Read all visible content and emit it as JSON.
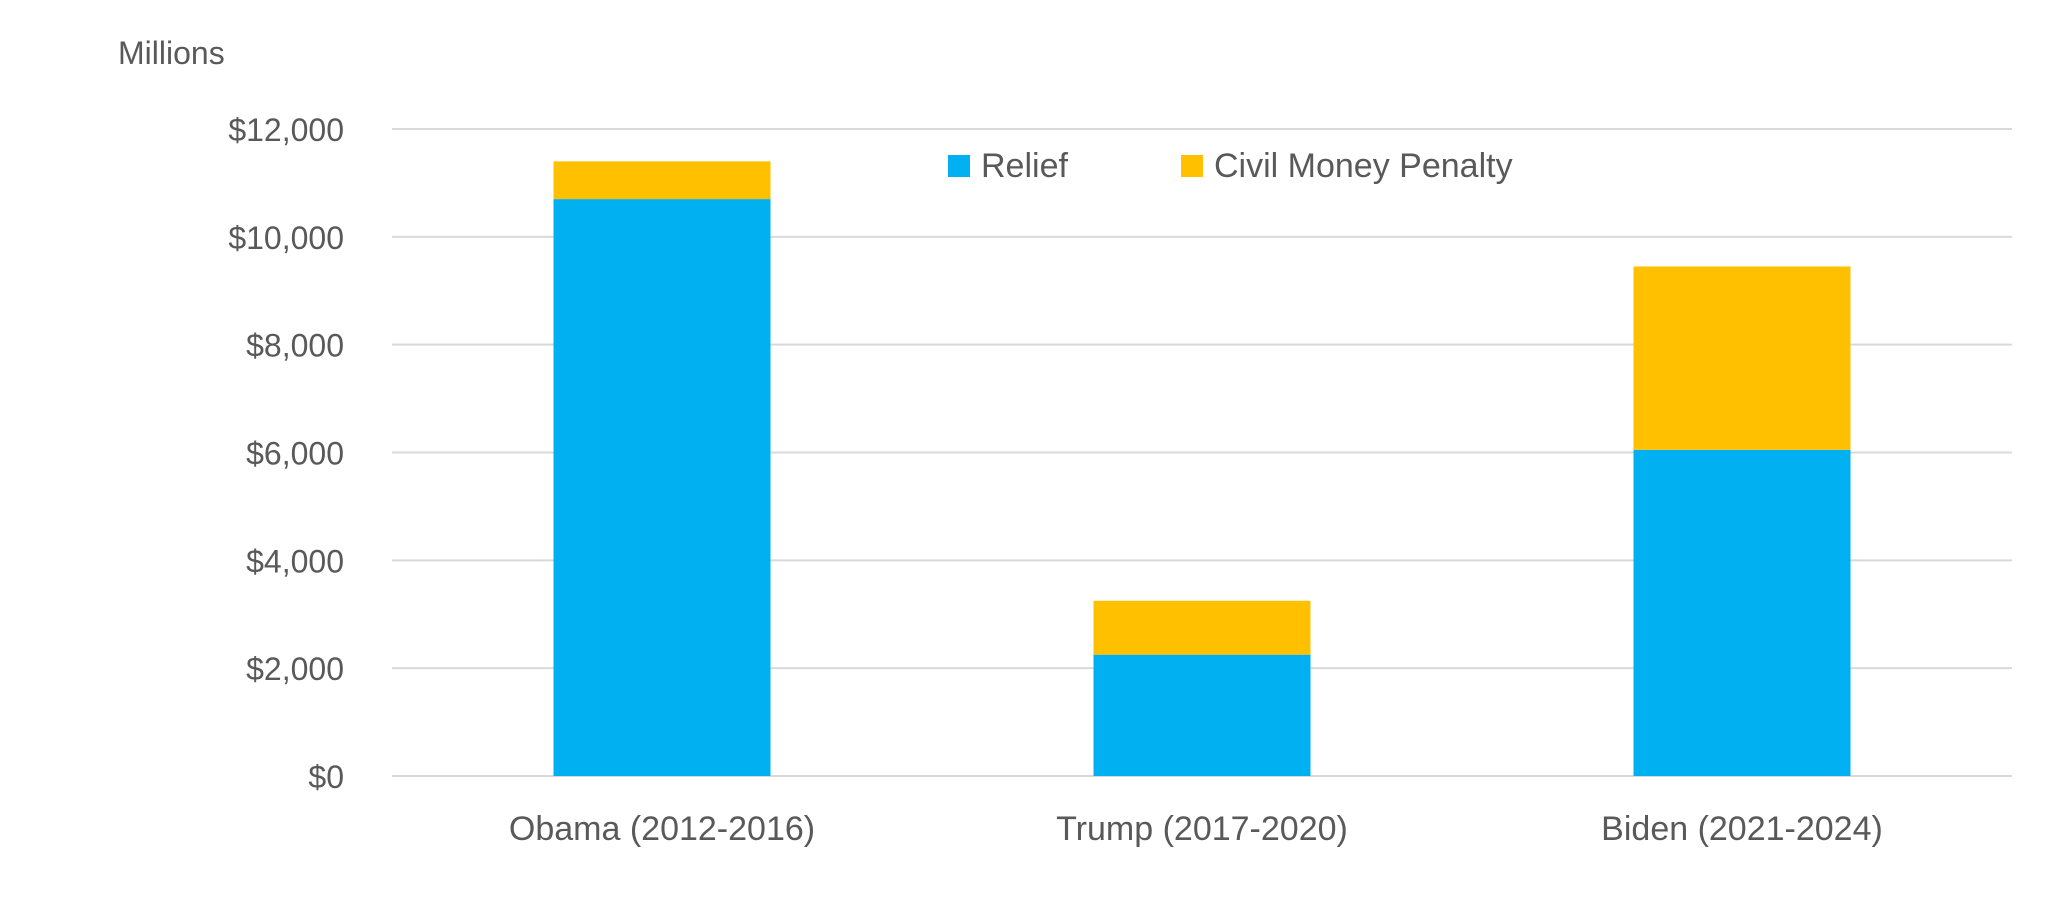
{
  "chart_data": {
    "type": "bar",
    "stacked": true,
    "title": "",
    "unit_label": "Millions",
    "xlabel": "",
    "ylabel": "",
    "categories": [
      "Obama (2012-2016)",
      "Trump (2017-2020)",
      "Biden (2021-2024)"
    ],
    "series": [
      {
        "name": "Relief",
        "color": "#00B0F0",
        "values": [
          10700,
          2250,
          6050
        ]
      },
      {
        "name": "Civil Money Penalty",
        "color": "#FFC000",
        "values": [
          700,
          1000,
          3400
        ]
      }
    ],
    "ylim": [
      0,
      12000
    ],
    "yticks": [
      0,
      2000,
      4000,
      6000,
      8000,
      10000,
      12000
    ],
    "ytick_labels": [
      "$0",
      "$2,000",
      "$4,000",
      "$6,000",
      "$8,000",
      "$10,000",
      "$12,000"
    ],
    "grid": true,
    "legend_position": "top-center",
    "colors": {
      "gridline": "#D9D9D9",
      "text": "#595959"
    }
  }
}
